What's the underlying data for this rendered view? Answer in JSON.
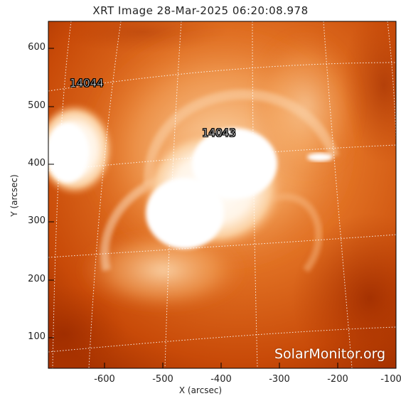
{
  "title": "XRT Image 28-Mar-2025 06:20:08.978",
  "axes": {
    "xlabel": "X (arcsec)",
    "ylabel": "Y (arcsec)",
    "x_ticks": [
      "-600",
      "-500",
      "-400",
      "-300",
      "-200",
      "-100"
    ],
    "y_ticks": [
      "600",
      "500",
      "400",
      "300",
      "200",
      "100"
    ]
  },
  "regions": {
    "ar1": "14044",
    "ar2": "14043"
  },
  "watermark": "SolarMonitor.org",
  "colors": {
    "background_dark": "#b53a00",
    "mid_orange": "#e0681a",
    "bright": "#fff8f0",
    "grid": "#ffffff"
  }
}
